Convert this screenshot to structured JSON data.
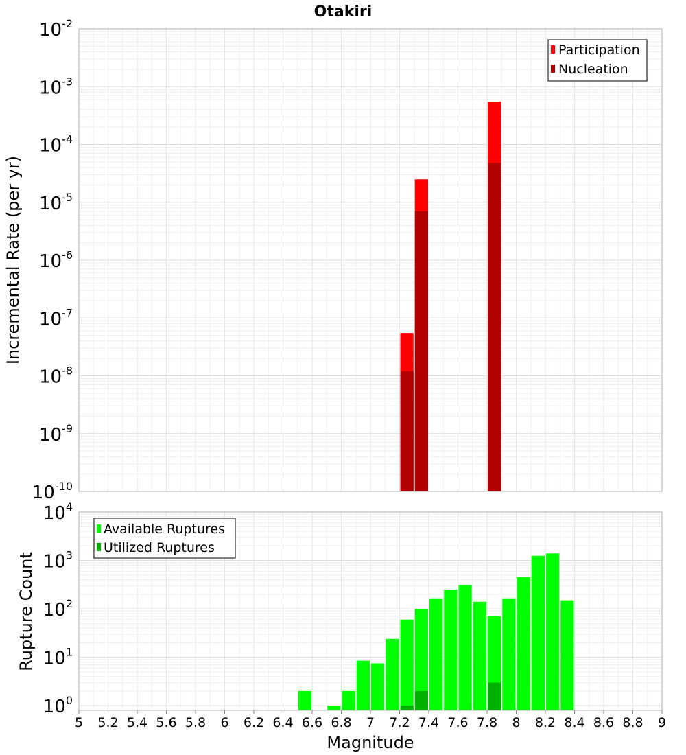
{
  "chart_data": [
    {
      "type": "bar",
      "title": "Otakiri",
      "ylabel": "Incremental Rate (per yr)",
      "xlabel": "",
      "xlim": [
        5,
        9
      ],
      "ylim": [
        1e-10,
        0.01
      ],
      "yscale": "log",
      "grid": true,
      "legend_placement": "top-right",
      "bin_width": 0.1,
      "ytick_exponents": [
        "-10",
        "-9",
        "-8",
        "-7",
        "-6",
        "-5",
        "-4",
        "-3",
        "-2"
      ],
      "series": [
        {
          "name": "Participation",
          "color": "#ff0000",
          "points": [
            [
              7.25,
              5.5e-08
            ],
            [
              7.35,
              2.5e-05
            ],
            [
              7.85,
              0.00055
            ]
          ]
        },
        {
          "name": "Nucleation",
          "color": "#b20000",
          "points": [
            [
              7.25,
              1.2e-08
            ],
            [
              7.35,
              7e-06
            ],
            [
              7.85,
              4.8e-05
            ]
          ]
        }
      ]
    },
    {
      "type": "bar",
      "title": "",
      "ylabel": "Rupture Count",
      "xlabel": "Magnitude",
      "xlim": [
        5,
        9
      ],
      "ylim": [
        0.8,
        10000
      ],
      "yscale": "log",
      "grid": true,
      "legend_placement": "top-left",
      "bin_width": 0.1,
      "xticks": [
        "5",
        "5.2",
        "5.4",
        "5.6",
        "5.8",
        "6",
        "6.2",
        "6.4",
        "6.6",
        "6.8",
        "7",
        "7.2",
        "7.4",
        "7.6",
        "7.8",
        "8",
        "8.2",
        "8.4",
        "8.6",
        "8.8",
        "9"
      ],
      "ytick_exponents": [
        "0",
        "1",
        "2",
        "3",
        "4"
      ],
      "series": [
        {
          "name": "Available Ruptures",
          "color": "#00ff00",
          "points": [
            [
              6.55,
              2
            ],
            [
              6.75,
              1
            ],
            [
              6.85,
              2
            ],
            [
              6.95,
              8.5
            ],
            [
              7.05,
              7.5
            ],
            [
              7.15,
              24
            ],
            [
              7.25,
              60
            ],
            [
              7.35,
              100
            ],
            [
              7.45,
              165
            ],
            [
              7.55,
              250
            ],
            [
              7.65,
              310
            ],
            [
              7.75,
              140
            ],
            [
              7.85,
              70
            ],
            [
              7.95,
              165
            ],
            [
              8.05,
              450
            ],
            [
              8.15,
              1250
            ],
            [
              8.25,
              1400
            ],
            [
              8.35,
              150
            ]
          ]
        },
        {
          "name": "Utilized Ruptures",
          "color": "#00b200",
          "points": [
            [
              7.25,
              1
            ],
            [
              7.35,
              2
            ],
            [
              7.85,
              3
            ]
          ]
        }
      ]
    }
  ]
}
